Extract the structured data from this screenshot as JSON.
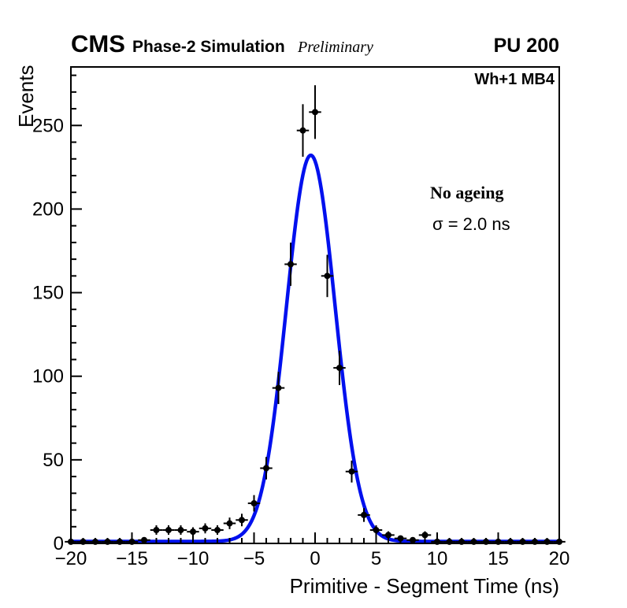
{
  "header": {
    "experiment": "CMS",
    "context": "Phase-2 Simulation",
    "status": "Preliminary",
    "pileup": "PU 200",
    "region": "Wh+1 MB4"
  },
  "annotation": {
    "line1": "No ageing",
    "line2": "σ = 2.0 ns"
  },
  "chart_data": {
    "type": "scatter",
    "title": "",
    "xlabel": "Primitive - Segment Time (ns)",
    "ylabel": "Events",
    "xlim": [
      -20,
      20
    ],
    "ylim": [
      0,
      285
    ],
    "grid": false,
    "legend_position": "none",
    "x_tick_values": [
      -20,
      -15,
      -10,
      -5,
      0,
      5,
      10,
      15,
      20
    ],
    "x_tick_labels": [
      "−20",
      "−15",
      "−10",
      "−5",
      "0",
      "5",
      "10",
      "15",
      "20"
    ],
    "x_minor_step": 1,
    "y_tick_values": [
      0,
      50,
      100,
      150,
      200,
      250
    ],
    "y_tick_labels": [
      "0",
      "50",
      "100",
      "150",
      "200",
      "250"
    ],
    "y_minor_step": 10,
    "series": [
      {
        "name": "data-histogram",
        "type": "errorbar",
        "marker": "filled-circle",
        "marker_color": "#000000",
        "xerr": 0.5,
        "x": [
          -20,
          -19,
          -18,
          -17,
          -16,
          -15,
          -14,
          -13,
          -12,
          -11,
          -10,
          -9,
          -8,
          -7,
          -6,
          -5,
          -4,
          -3,
          -2,
          -1,
          0,
          1,
          2,
          3,
          4,
          5,
          6,
          7,
          8,
          9,
          10,
          11,
          12,
          13,
          14,
          15,
          16,
          17,
          18,
          19,
          20
        ],
        "y": [
          1,
          1,
          1,
          1,
          1,
          1,
          2,
          8,
          8,
          8,
          7,
          9,
          8,
          12,
          14,
          24,
          45,
          93,
          167,
          247,
          258,
          160,
          105,
          43,
          17,
          8,
          5,
          3,
          2,
          5,
          1,
          1,
          1,
          1,
          1,
          1,
          1,
          1,
          1,
          1,
          1
        ]
      },
      {
        "name": "gaussian-fit",
        "type": "gaussian",
        "color": "#0010ee",
        "amplitude": 231,
        "mean": -0.35,
        "sigma": 2.0,
        "baseline": 1.2
      }
    ]
  }
}
